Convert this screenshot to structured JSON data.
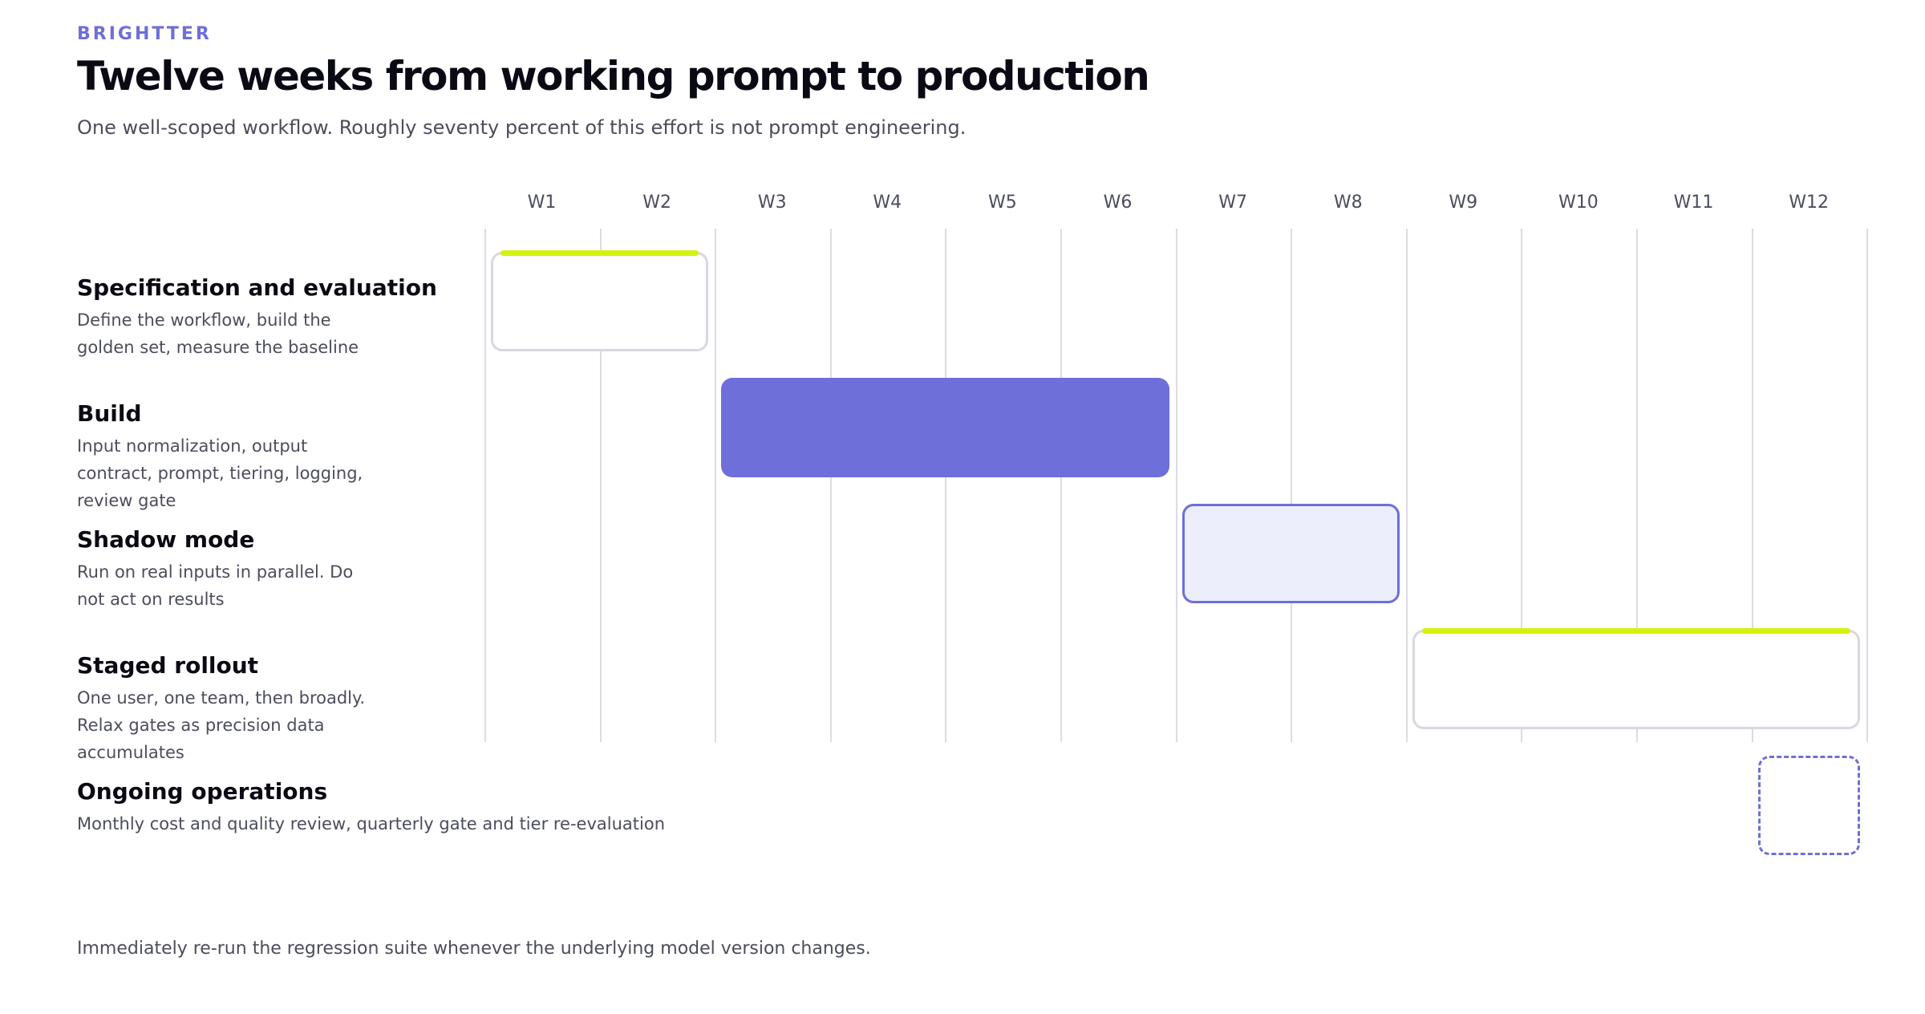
{
  "header": {
    "brand": "BRIGHTTER",
    "title": "Twelve weeks from working prompt to production",
    "subtitle": "One well-scoped workflow. Roughly seventy percent of this effort is not prompt engineering."
  },
  "weeks": [
    "W1",
    "W2",
    "W3",
    "W4",
    "W5",
    "W6",
    "W7",
    "W8",
    "W9",
    "W10",
    "W11",
    "W12"
  ],
  "phases": [
    {
      "title": "Specification and evaluation",
      "description": "Define the workflow, build the golden set, measure the baseline",
      "start_week": 1,
      "end_week": 2,
      "style": "outline",
      "accent": true
    },
    {
      "title": "Build",
      "description": "Input normalization, output contract, prompt, tiering, logging, review gate",
      "start_week": 3,
      "end_week": 6,
      "style": "solid",
      "accent": false
    },
    {
      "title": "Shadow mode",
      "description": "Run on real inputs in parallel. Do not act on results",
      "start_week": 7,
      "end_week": 8,
      "style": "tint",
      "accent": false
    },
    {
      "title": "Staged rollout",
      "description": "One user, one team, then broadly. Relax gates as precision data accumulates",
      "start_week": 9,
      "end_week": 12,
      "style": "outline",
      "accent": true
    },
    {
      "title": "Ongoing operations",
      "description": "Monthly cost and quality review, quarterly gate and tier re-evaluation",
      "start_week": 12,
      "end_week": 12,
      "style": "dashed",
      "accent": false
    }
  ],
  "colors": {
    "brand_accent": "#6e6fd8",
    "highlight": "#d4f20f",
    "tint": "#eceefb",
    "outline": "#d8d8e0"
  },
  "footnote": "Immediately re-run the regression suite whenever the underlying model version changes."
}
